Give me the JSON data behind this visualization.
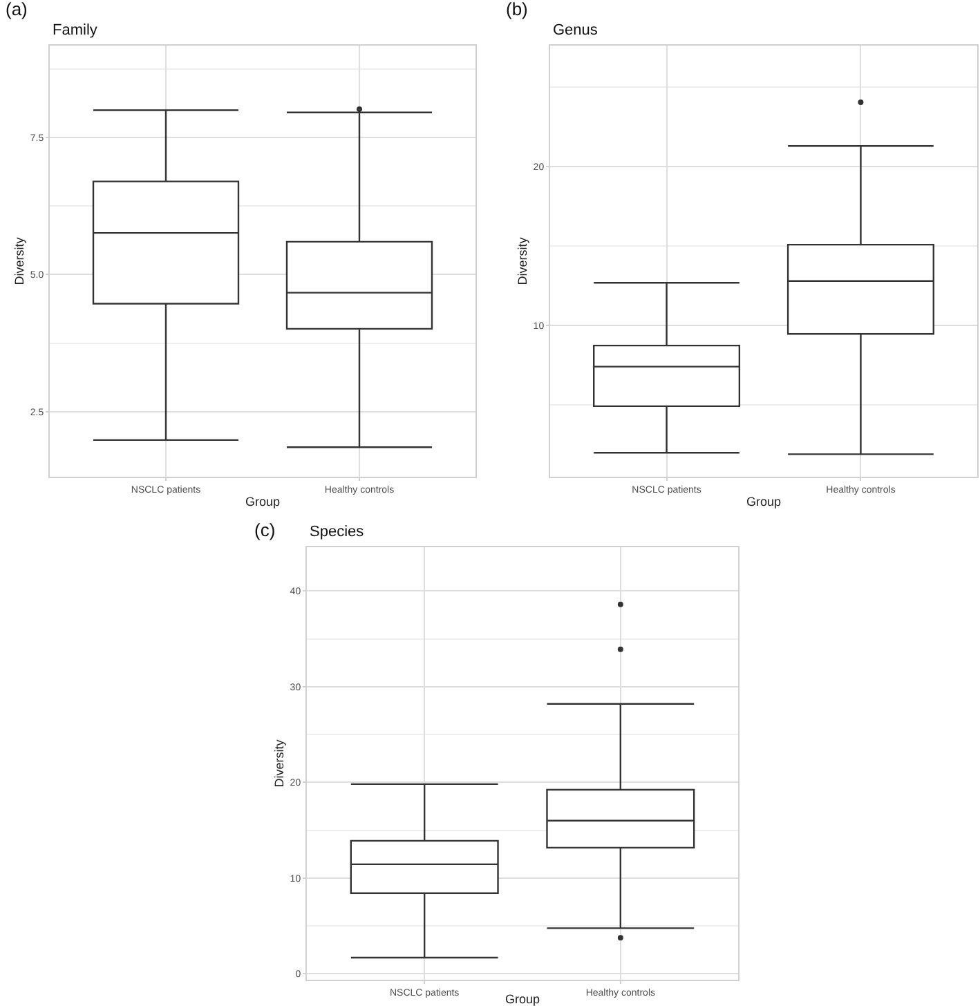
{
  "chart_data": [
    {
      "type": "box",
      "title": "Family",
      "annotations": [
        "(a)"
      ],
      "xlabel": "Group",
      "ylabel": "Diversity",
      "categories": [
        "NSCLC patients",
        "Healthy controls"
      ],
      "boxes": [
        {
          "low": 1.98,
          "q1": 4.47,
          "median": 5.76,
          "q3": 6.7,
          "high": 8.0
        },
        {
          "low": 1.85,
          "q1": 4.01,
          "median": 4.67,
          "q3": 5.6,
          "high": 7.96,
          "outliers": [
            8.02
          ]
        }
      ],
      "ylim": [
        1.31,
        9.18
      ],
      "yticks": [
        {
          "value": 2.5,
          "label": "2.5"
        },
        {
          "value": 5,
          "label": "5.0"
        },
        {
          "value": 7.5,
          "label": "7.5"
        }
      ],
      "grid": true
    },
    {
      "type": "box",
      "title": "Genus",
      "annotations": [
        "(b)"
      ],
      "xlabel": "Group",
      "ylabel": "Diversity",
      "categories": [
        "NSCLC patients",
        "Healthy controls"
      ],
      "boxes": [
        {
          "low": 1.97,
          "q1": 4.9,
          "median": 7.39,
          "q3": 8.72,
          "high": 12.67
        },
        {
          "low": 1.88,
          "q1": 9.45,
          "median": 12.78,
          "q3": 15.07,
          "high": 21.28,
          "outliers": [
            24.03
          ]
        }
      ],
      "ylim": [
        0.46,
        27.6
      ],
      "yticks": [
        10,
        20
      ],
      "grid": true
    },
    {
      "type": "box",
      "title": "Species",
      "annotations": [
        "(c)"
      ],
      "xlabel": "Group",
      "ylabel": "Diversity",
      "categories": [
        "NSCLC patients",
        "Healthy controls"
      ],
      "boxes": [
        {
          "low": 1.68,
          "q1": 8.41,
          "median": 11.44,
          "q3": 13.89,
          "high": 19.81
        },
        {
          "low": 4.76,
          "q1": 13.17,
          "median": 16.0,
          "q3": 19.23,
          "high": 28.2,
          "outliers": [
            38.6,
            33.9,
            3.75
          ]
        }
      ],
      "ylim": [
        -0.63,
        44.57
      ],
      "yticks": [
        0,
        10,
        20,
        30,
        40
      ],
      "grid": true
    }
  ]
}
